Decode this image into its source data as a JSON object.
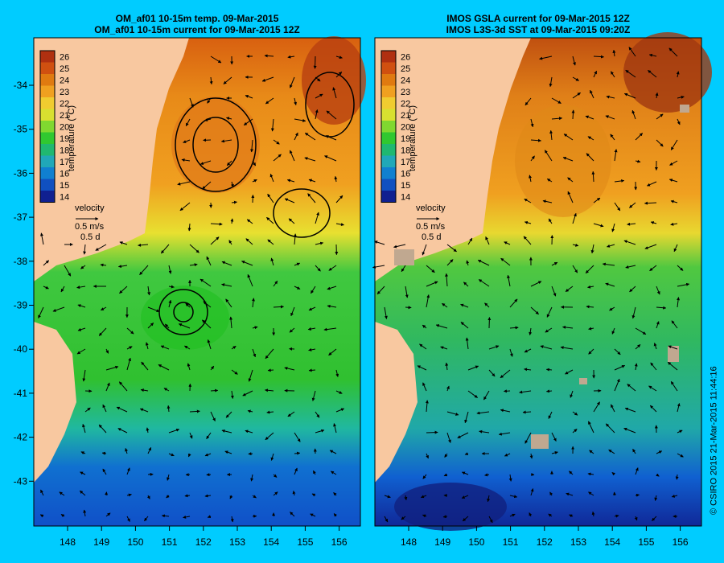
{
  "panels": [
    {
      "title_line1": "OM_af01 10-15m temp. 09-Mar-2015",
      "title_line2": "OM_af01 10-15m current for 09-Mar-2015 12Z"
    },
    {
      "title_line1": "IMOS GSLA current for 09-Mar-2015 12Z",
      "title_line2": "IMOS L3S-3d SST at 09-Mar-2015 09:20Z"
    }
  ],
  "colorbar": {
    "label": "temperature (°C)",
    "ticks": [
      "26",
      "25",
      "24",
      "23",
      "22",
      "21",
      "20",
      "19",
      "18",
      "17",
      "16",
      "15",
      "14"
    ],
    "colors": [
      "#b03010",
      "#d05010",
      "#e07a10",
      "#f0a020",
      "#f0cc30",
      "#d8e030",
      "#80d830",
      "#30c830",
      "#20b870",
      "#20a8b8",
      "#1080d0",
      "#1050c0",
      "#102090"
    ]
  },
  "velocity_legend": {
    "label": "velocity",
    "speed": "0.5 m/s",
    "duration": "0.5 d"
  },
  "axes": {
    "x_ticks": [
      "148",
      "149",
      "150",
      "151",
      "152",
      "153",
      "154",
      "155",
      "156"
    ],
    "y_ticks": [
      "-34",
      "-35",
      "-36",
      "-37",
      "-38",
      "-39",
      "-40",
      "-41",
      "-42",
      "-43"
    ]
  },
  "credit": "© CSIRO 2015  21-Mar-2015 11:44:16",
  "colors": {
    "background": "#00ccff",
    "land": "#f8c8a0"
  }
}
